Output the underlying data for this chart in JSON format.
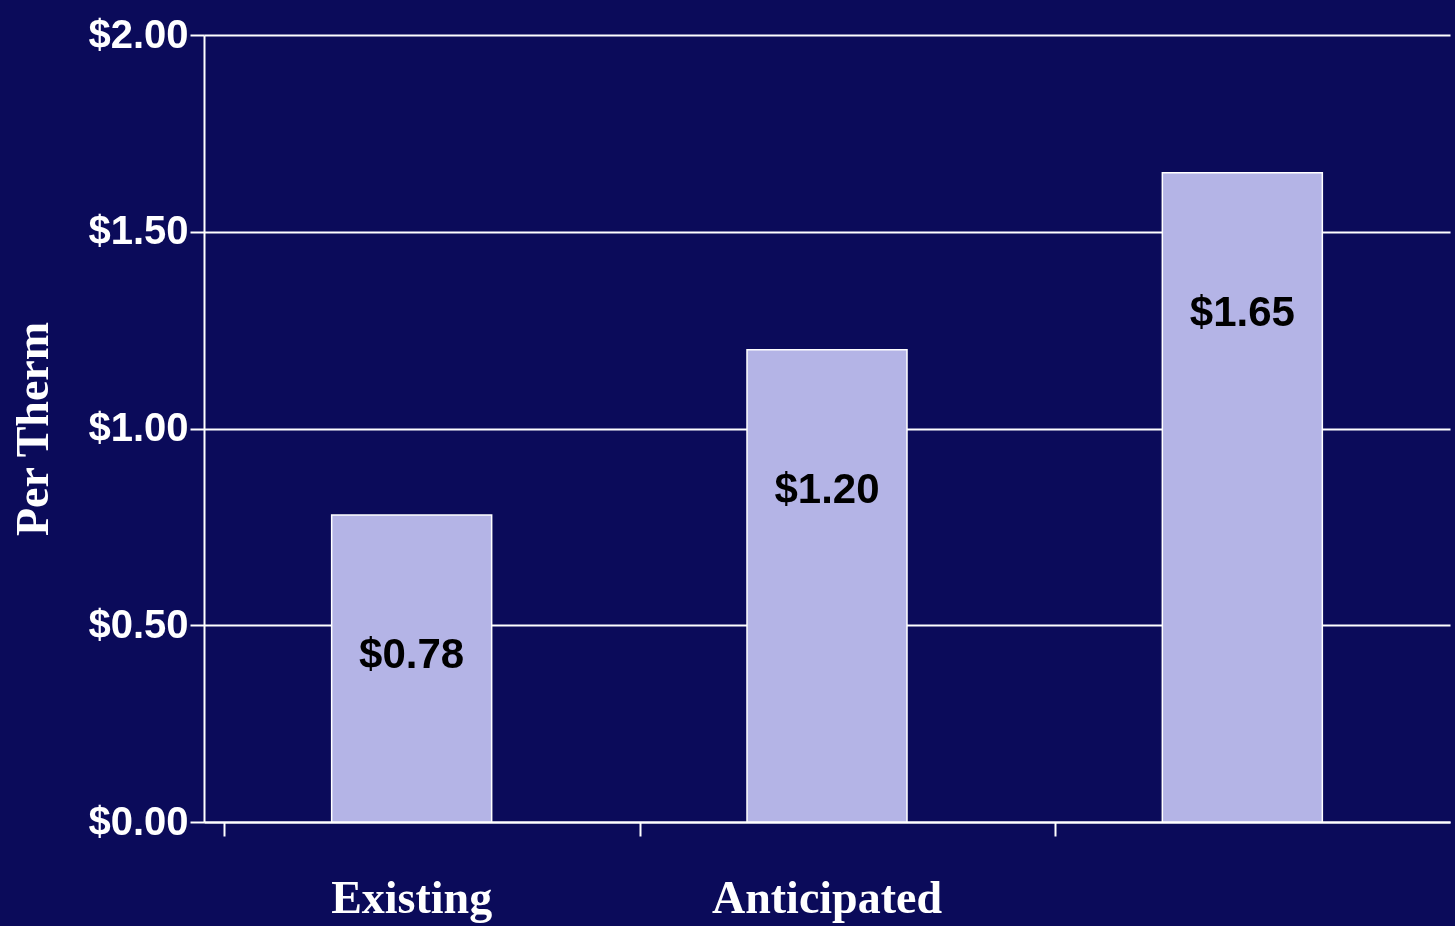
{
  "chart_data": {
    "type": "bar",
    "ylabel": "Per Therm",
    "categories": [
      "Existing",
      "Anticipated",
      null
    ],
    "values": [
      0.78,
      1.2,
      1.65
    ],
    "value_labels": [
      "$0.78",
      "$1.20",
      "$1.65"
    ],
    "color": "#b4b4e6",
    "ylim": [
      0,
      2
    ],
    "yticks": [
      {
        "value": 0,
        "label": "$0.00"
      },
      {
        "value": 0.5,
        "label": "$0.50"
      },
      {
        "value": 1,
        "label": "$1.00"
      },
      {
        "value": 1.5,
        "label": "$1.50"
      },
      {
        "value": 2,
        "label": "$2.00"
      }
    ],
    "grid": "y"
  }
}
